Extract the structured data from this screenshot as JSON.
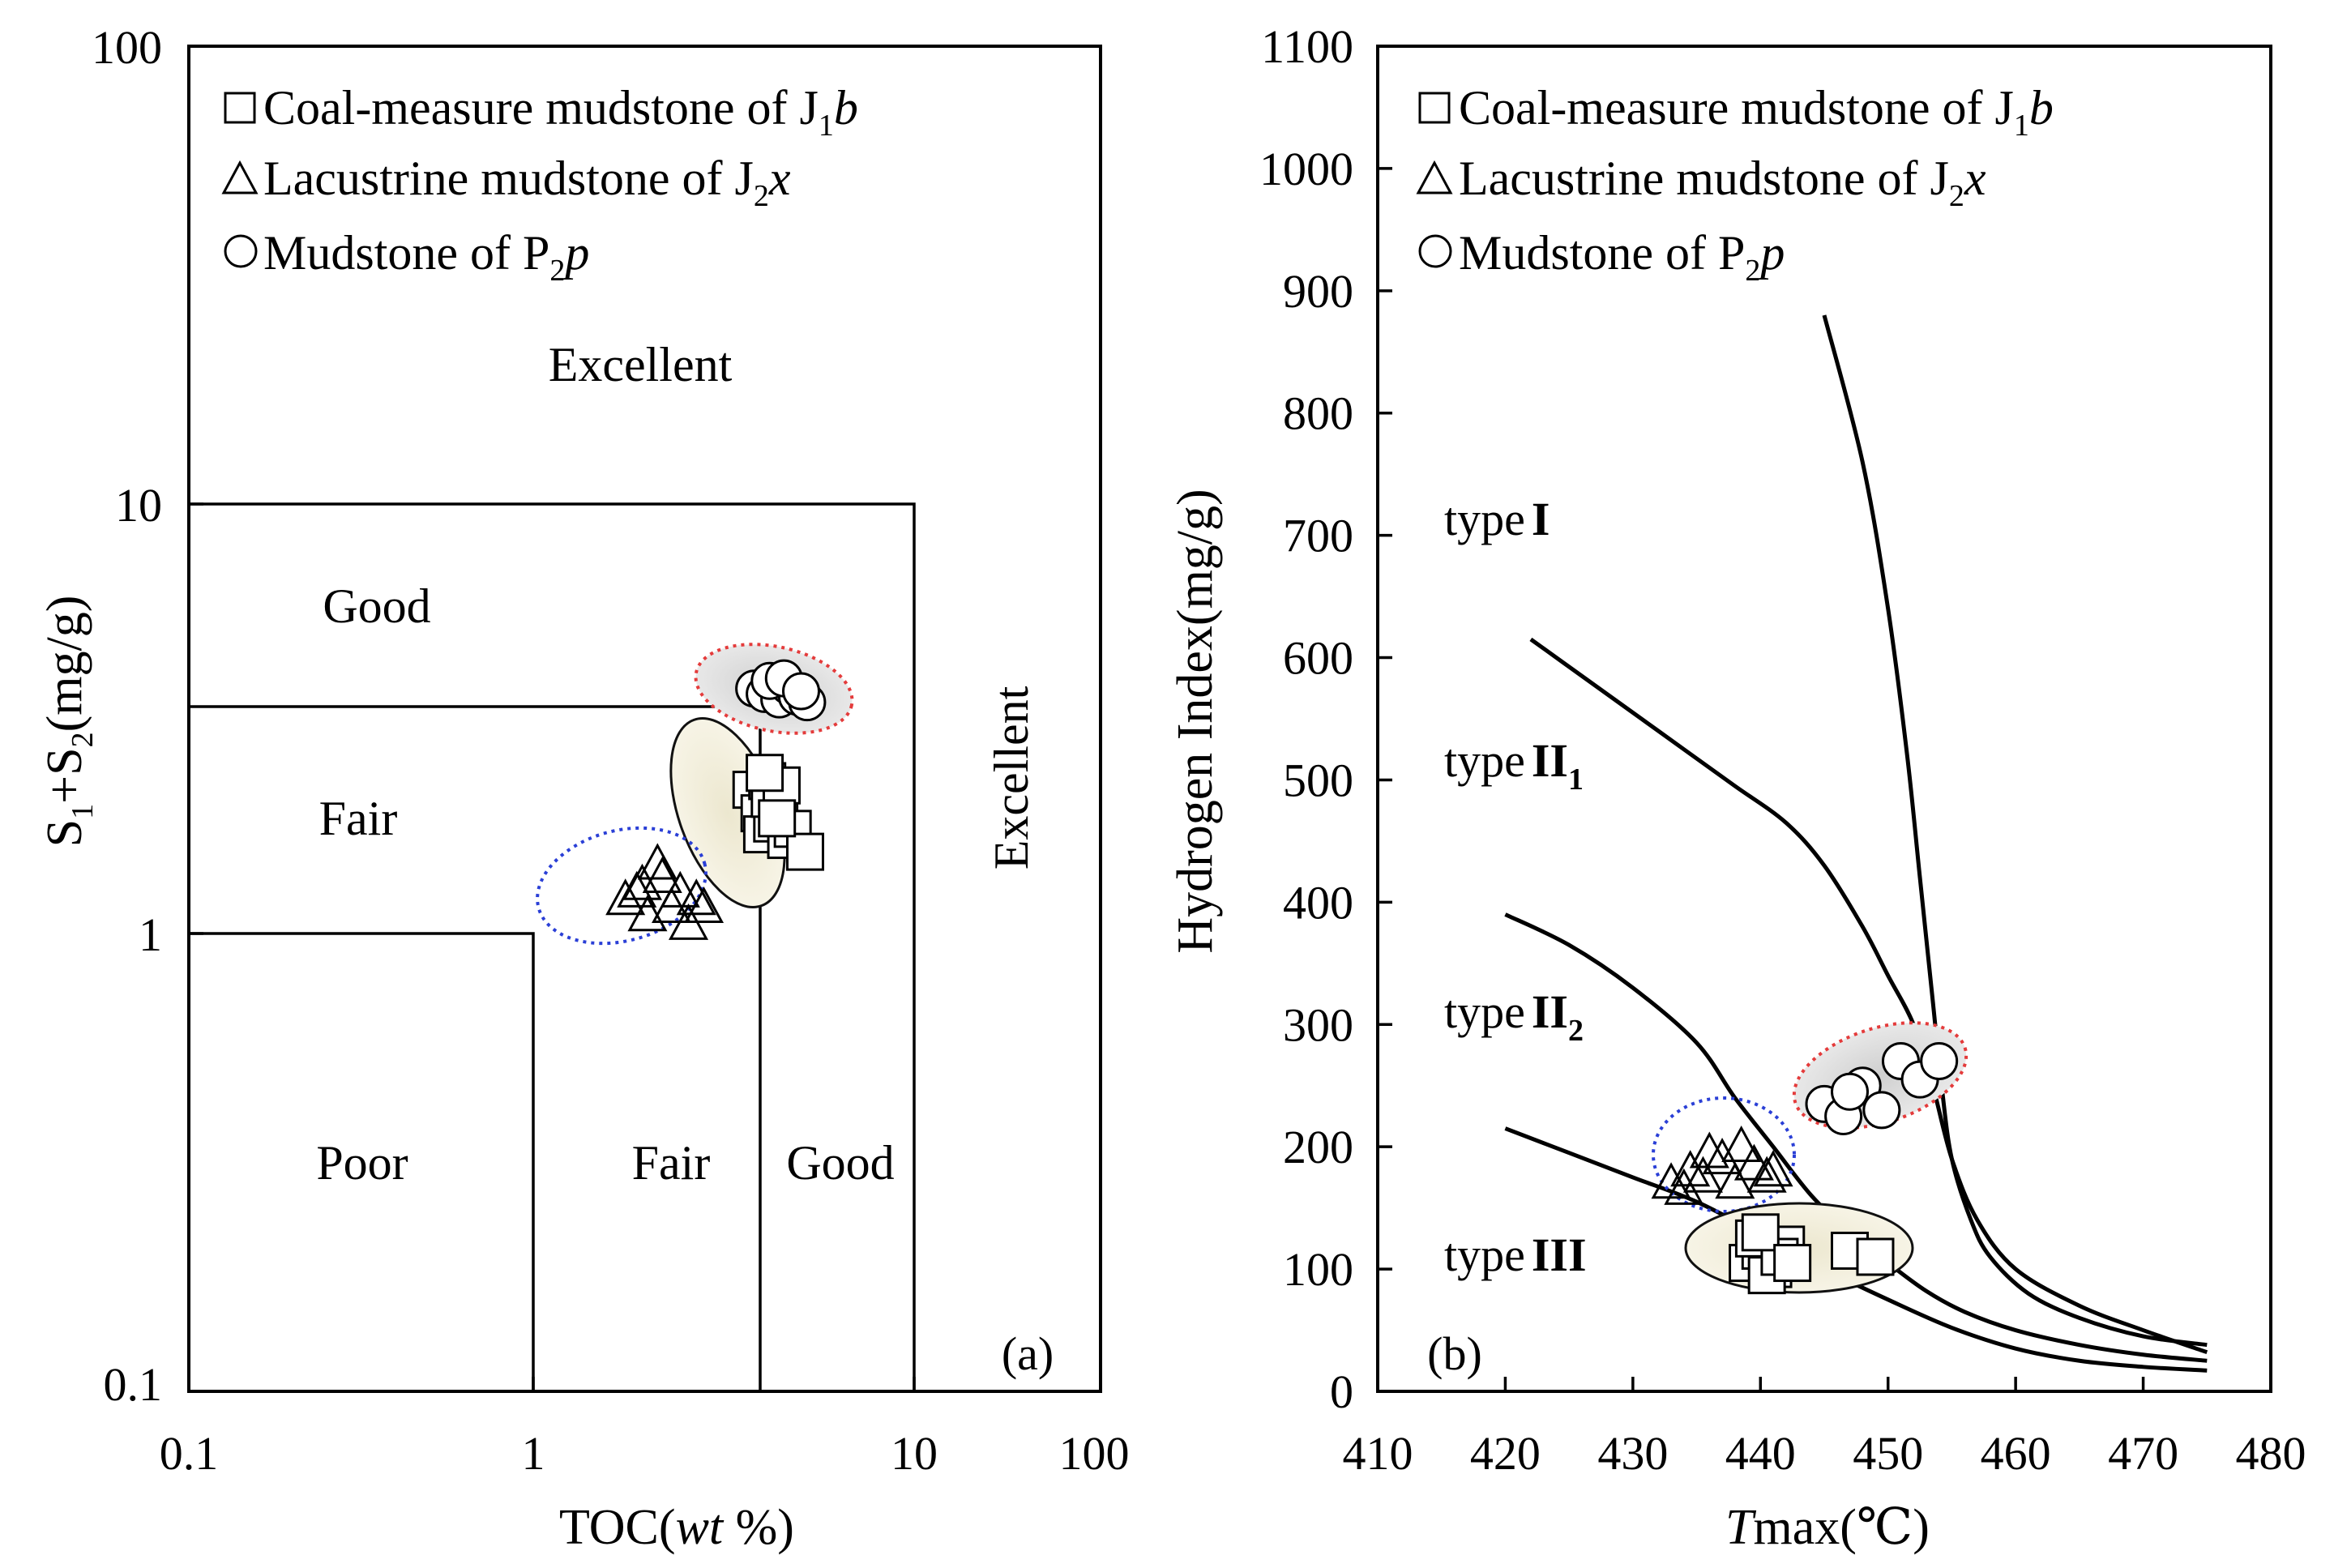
{
  "chart_data": [
    {
      "id": "a",
      "type": "scatter",
      "panel_label": "(a)",
      "xscale": "log",
      "yscale": "log",
      "xlim": [
        0.1,
        100
      ],
      "ylim": [
        0.1,
        100
      ],
      "x_ticks": [
        "0.1",
        "1",
        "10",
        "100"
      ],
      "y_ticks": [
        "0.1",
        "1",
        "10",
        "100"
      ],
      "xlabel": {
        "main": "TOC(",
        "italic": "wt",
        "suffix": " %)"
      },
      "ylabel": {
        "a": "S",
        "a_sub": "1",
        "b": "+S",
        "b_sub": "2",
        "c": "(mg/g)"
      },
      "legend": [
        {
          "marker": "square",
          "text": "Coal-measure mudstone of J",
          "sub": "1",
          "ital": "b"
        },
        {
          "marker": "triangle",
          "text": "Lacustrine mudstone of J",
          "sub": "2",
          "ital": "x"
        },
        {
          "marker": "circle",
          "text": "Mudstone of P",
          "sub": "2",
          "ital": "p"
        }
      ],
      "regions": {
        "excellent_top": "Excellent",
        "good_upper": "Good",
        "fair_upper": "Fair",
        "excellent_right": "Excellent",
        "poor": "Poor",
        "fair_lower": "Fair",
        "good_lower": "Good"
      },
      "series": [
        {
          "name": "Mudstone of P2p",
          "marker": "circle",
          "x": [
            3.05,
            3.25,
            3.45,
            3.55,
            3.75,
            3.95,
            4.2,
            3.35,
            3.65,
            4.05
          ],
          "y": [
            3.7,
            3.6,
            3.8,
            3.5,
            3.75,
            3.55,
            3.45,
            3.85,
            3.9,
            3.65
          ]
        },
        {
          "name": "Coal-measure mudstone of J1b",
          "marker": "square",
          "x": [
            3.0,
            3.15,
            3.3,
            3.45,
            3.2,
            3.4,
            3.55,
            3.7,
            3.35,
            3.6,
            3.85,
            4.15,
            3.25,
            3.5
          ],
          "y": [
            2.2,
            1.95,
            2.3,
            2.05,
            1.75,
            1.85,
            1.95,
            1.7,
            2.1,
            2.25,
            1.8,
            1.6,
            2.4,
            1.9
          ]
        },
        {
          "name": "Lacustrine mudstone of J2x",
          "marker": "triangle",
          "x": [
            1.4,
            1.55,
            1.75,
            1.95,
            2.15,
            1.6,
            1.85,
            2.05,
            1.7,
            1.5,
            2.25
          ],
          "y": [
            1.25,
            1.35,
            1.4,
            1.3,
            1.25,
            1.15,
            1.2,
            1.1,
            1.5,
            1.3,
            1.2
          ]
        }
      ]
    },
    {
      "id": "b",
      "type": "line+scatter",
      "panel_label": "(b)",
      "xlim": [
        410,
        480
      ],
      "ylim": [
        0,
        1100
      ],
      "x_ticks": [
        "410",
        "420",
        "430",
        "440",
        "450",
        "460",
        "470",
        "480"
      ],
      "y_ticks": [
        "0",
        "100",
        "200",
        "300",
        "400",
        "500",
        "600",
        "700",
        "800",
        "900",
        "1000",
        "1100"
      ],
      "xlabel": {
        "ital": "T",
        "main": "max(℃)"
      },
      "ylabel": "Hydrogen  Index(mg/g)",
      "legend": [
        {
          "marker": "square",
          "text": "Coal-measure mudstone of J",
          "sub": "1",
          "ital": "b"
        },
        {
          "marker": "triangle",
          "text": "Lacustrine mudstone of J",
          "sub": "2",
          "ital": "x"
        },
        {
          "marker": "circle",
          "text": "Mudstone of P",
          "sub": "2",
          "ital": "p"
        }
      ],
      "type_labels": [
        {
          "pre": "type",
          "bold": "I",
          "sub": ""
        },
        {
          "pre": "type",
          "bold": "II",
          "sub": "1"
        },
        {
          "pre": "type",
          "bold": "II",
          "sub": "2"
        },
        {
          "pre": "type",
          "bold": "III",
          "sub": ""
        }
      ],
      "curves": [
        {
          "name": "type I boundary",
          "x": [
            445,
            448,
            450,
            451.5,
            452.5,
            453.5,
            454.2,
            455,
            456.5,
            458,
            461,
            465,
            470,
            475
          ],
          "y": [
            880,
            760,
            640,
            520,
            420,
            320,
            250,
            190,
            140,
            110,
            80,
            60,
            45,
            38
          ]
        },
        {
          "name": "type II1 boundary",
          "x": [
            422,
            426,
            430,
            434,
            438,
            442,
            445,
            448,
            450,
            452,
            453.5,
            455,
            457,
            460,
            465,
            470,
            475
          ],
          "y": [
            615,
            585,
            555,
            525,
            495,
            465,
            430,
            380,
            340,
            300,
            250,
            190,
            140,
            100,
            70,
            50,
            32
          ]
        },
        {
          "name": "type II2 boundary",
          "x": [
            420,
            425,
            430,
            435,
            438,
            441,
            444,
            447,
            450,
            453,
            456,
            460,
            465,
            470,
            475
          ],
          "y": [
            390,
            365,
            330,
            285,
            240,
            200,
            160,
            130,
            105,
            82,
            65,
            50,
            38,
            30,
            25
          ]
        },
        {
          "name": "type III boundary",
          "x": [
            420,
            425,
            430,
            435,
            440,
            445,
            450,
            455,
            460,
            465,
            470,
            475
          ],
          "y": [
            215,
            195,
            175,
            155,
            128,
            100,
            75,
            52,
            35,
            25,
            20,
            17
          ]
        }
      ],
      "series": [
        {
          "name": "Mudstone of P2p",
          "marker": "circle",
          "x": [
            445,
            446.5,
            448,
            449.5,
            451,
            452.5,
            454,
            447
          ],
          "y": [
            235,
            225,
            250,
            230,
            270,
            255,
            270,
            245
          ]
        },
        {
          "name": "Lacustrine mudstone of J2x",
          "marker": "triangle",
          "x": [
            433,
            434.5,
            435.5,
            437,
            438,
            438.5,
            439.5,
            440.5,
            436,
            434,
            441
          ],
          "y": [
            170,
            180,
            175,
            190,
            170,
            200,
            185,
            175,
            195,
            165,
            180
          ]
        },
        {
          "name": "Coal-measure mudstone of J1b",
          "marker": "square",
          "x": [
            439,
            440,
            441,
            442,
            439.5,
            440.5,
            441.5,
            447,
            449,
            440,
            442.5
          ],
          "y": [
            105,
            115,
            100,
            120,
            125,
            95,
            110,
            115,
            110,
            130,
            105
          ]
        }
      ]
    }
  ]
}
